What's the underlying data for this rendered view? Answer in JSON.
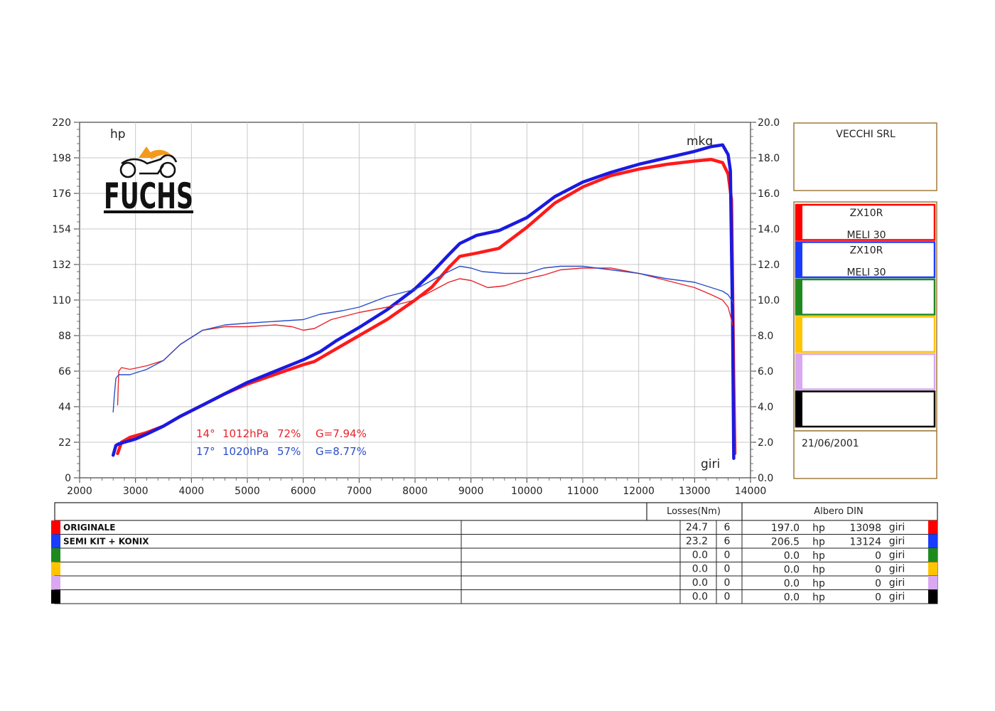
{
  "chart_data": {
    "type": "line",
    "logo": "FUCHS",
    "y_left_unit": "hp",
    "y_right_unit": "mkg",
    "x_unit": "giri",
    "xlim": [
      2000,
      14000
    ],
    "ylim_left": [
      0,
      220
    ],
    "ylim_right": [
      0,
      20
    ],
    "x_ticks": [
      "2000",
      "3000",
      "4000",
      "5000",
      "6000",
      "7000",
      "8000",
      "9000",
      "10000",
      "11000",
      "12000",
      "13000",
      "14000"
    ],
    "y_left_ticks": [
      "0",
      "22",
      "44",
      "66",
      "88",
      "110",
      "132",
      "154",
      "176",
      "198",
      "220"
    ],
    "y_right_ticks": [
      "0.0",
      "2.0",
      "4.0",
      "6.0",
      "8.0",
      "10.0",
      "12.0",
      "14.0",
      "16.0",
      "18.0",
      "20.0"
    ],
    "grid": true,
    "conditions": [
      {
        "temp": "14°",
        "pressure": "1012hPa",
        "humidity": "72%",
        "g": "G=7.94%",
        "color": "#e8242b"
      },
      {
        "temp": "17°",
        "pressure": "1020hPa",
        "humidity": "57%",
        "g": "G=8.77%",
        "color": "#2b4fc9"
      }
    ],
    "series": [
      {
        "name": "ORIGINALE",
        "color": "#ff1a1a",
        "axis": "left",
        "kind": "power",
        "x": [
          2680,
          2750,
          2900,
          3200,
          3500,
          3800,
          4200,
          4600,
          5000,
          5500,
          6000,
          6200,
          6500,
          7000,
          7500,
          8000,
          8300,
          8600,
          8800,
          9100,
          9500,
          10000,
          10500,
          11000,
          11500,
          12000,
          12500,
          13000,
          13300,
          13500,
          13600,
          13660,
          13700,
          13720
        ],
        "y": [
          15,
          22,
          25,
          28,
          32,
          38,
          45,
          52,
          58,
          64,
          70,
          72,
          78,
          88,
          98,
          110,
          118,
          130,
          137,
          139,
          142,
          155,
          170,
          180,
          187,
          191,
          194,
          196,
          197,
          195,
          188,
          172,
          60,
          15
        ]
      },
      {
        "name": "SEMI KIT + KONIX",
        "color": "#1a1ae0",
        "axis": "left",
        "kind": "power",
        "x": [
          2600,
          2650,
          2700,
          2800,
          3000,
          3200,
          3500,
          3800,
          4200,
          4600,
          5000,
          5500,
          6000,
          6300,
          6600,
          7000,
          7500,
          8000,
          8300,
          8600,
          8800,
          9100,
          9500,
          10000,
          10500,
          11000,
          11500,
          12000,
          12500,
          13000,
          13300,
          13500,
          13600,
          13640,
          13680,
          13700
        ],
        "y": [
          14,
          20,
          21,
          22,
          24,
          27,
          32,
          38,
          45,
          52,
          59,
          66,
          73,
          78,
          85,
          93,
          104,
          117,
          127,
          138,
          145,
          150,
          153,
          161,
          174,
          183,
          189,
          194,
          198,
          202,
          205,
          206,
          200,
          190,
          95,
          12
        ]
      },
      {
        "name": "ORIGINALE",
        "color": "#e8242b",
        "axis": "right",
        "kind": "torque",
        "x": [
          2680,
          2700,
          2750,
          2900,
          3200,
          3500,
          3800,
          4200,
          4600,
          5000,
          5500,
          5800,
          6000,
          6200,
          6500,
          7000,
          7500,
          8000,
          8300,
          8600,
          8800,
          9000,
          9300,
          9600,
          10000,
          10300,
          10600,
          11000,
          11500,
          12000,
          12500,
          13000,
          13300,
          13500,
          13600,
          13650,
          13680
        ],
        "y": [
          4.1,
          6.0,
          6.2,
          6.1,
          6.3,
          6.6,
          7.5,
          8.3,
          8.5,
          8.5,
          8.6,
          8.5,
          8.3,
          8.4,
          8.9,
          9.3,
          9.6,
          10.0,
          10.5,
          11.0,
          11.2,
          11.1,
          10.7,
          10.8,
          11.2,
          11.4,
          11.7,
          11.8,
          11.8,
          11.5,
          11.1,
          10.7,
          10.3,
          10.0,
          9.6,
          9.0,
          8.6
        ]
      },
      {
        "name": "SEMI KIT + KONIX",
        "color": "#2b4fc9",
        "axis": "right",
        "kind": "torque",
        "x": [
          2600,
          2620,
          2650,
          2700,
          2900,
          3200,
          3500,
          3800,
          4200,
          4600,
          5000,
          5500,
          6000,
          6300,
          6700,
          7000,
          7500,
          8000,
          8300,
          8600,
          8800,
          9000,
          9200,
          9600,
          10000,
          10300,
          10600,
          11000,
          11500,
          12000,
          12500,
          13000,
          13300,
          13500,
          13600,
          13660,
          13700
        ],
        "y": [
          3.7,
          4.6,
          5.6,
          5.8,
          5.8,
          6.1,
          6.6,
          7.5,
          8.3,
          8.6,
          8.7,
          8.8,
          8.9,
          9.2,
          9.4,
          9.6,
          10.2,
          10.6,
          11.1,
          11.6,
          11.9,
          11.8,
          11.6,
          11.5,
          11.5,
          11.8,
          11.9,
          11.9,
          11.7,
          11.5,
          11.2,
          11.0,
          10.7,
          10.5,
          10.3,
          10.0,
          9.8
        ]
      }
    ]
  },
  "legend_panel": {
    "company": "VECCHI SRL",
    "runs": [
      {
        "line1": "ZX10R",
        "line2": "MELI 30",
        "color": "#ff0000"
      },
      {
        "line1": "ZX10R",
        "line2": "MELI 30",
        "color": "#1a3cff"
      },
      {
        "line1": "",
        "line2": "",
        "color": "#1e8a1e"
      },
      {
        "line1": "",
        "line2": "",
        "color": "#ffc400"
      },
      {
        "line1": "",
        "line2": "",
        "color": "#d9a8f0"
      },
      {
        "line1": "",
        "line2": "",
        "color": "#000000"
      }
    ],
    "date": "21/06/2001"
  },
  "results_table": {
    "losses_header": "Losses(Nm)",
    "din_header": "Albero DIN",
    "hp_unit": "hp",
    "rpm_unit": "giri",
    "rows": [
      {
        "name": "ORIGINALE",
        "color": "#ff0000",
        "loss": "24.7",
        "loss_n": "6",
        "hp": "197.0",
        "rpm": "13098"
      },
      {
        "name": "SEMI KIT + KONIX",
        "color": "#1a3cff",
        "loss": "23.2",
        "loss_n": "6",
        "hp": "206.5",
        "rpm": "13124"
      },
      {
        "name": "",
        "color": "#1e8a1e",
        "loss": "0.0",
        "loss_n": "0",
        "hp": "0.0",
        "rpm": "0"
      },
      {
        "name": "",
        "color": "#ffc400",
        "loss": "0.0",
        "loss_n": "0",
        "hp": "0.0",
        "rpm": "0"
      },
      {
        "name": "",
        "color": "#d9a8f0",
        "loss": "0.0",
        "loss_n": "0",
        "hp": "0.0",
        "rpm": "0"
      },
      {
        "name": "",
        "color": "#000000",
        "loss": "0.0",
        "loss_n": "0",
        "hp": "0.0",
        "rpm": "0"
      }
    ]
  }
}
